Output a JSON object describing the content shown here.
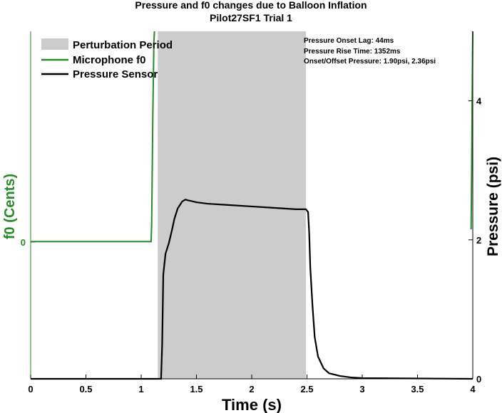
{
  "chart_data": {
    "type": "line",
    "title": "Pressure and f0 changes due to Balloon Inflation",
    "subtitle": "Pilot27SF1 Trial 1",
    "xlabel": "Time (s)",
    "ylabel_left": "f0 (Cents)",
    "ylabel_right": "Pressure (psi)",
    "xlim": [
      0,
      4
    ],
    "ylim_right": [
      0,
      5
    ],
    "x_ticks": [
      "0",
      "0.5",
      "1",
      "1.5",
      "2",
      "2.5",
      "3",
      "3.5",
      "4"
    ],
    "y_left_ticks": [
      "0"
    ],
    "y_right_ticks": [
      "0",
      "2",
      "4"
    ],
    "perturbation_period": [
      1.15,
      2.49
    ],
    "legend": {
      "placement": "top-left",
      "items": [
        "Perturbation Period",
        "Microphone f0",
        "Pressure Sensor"
      ]
    },
    "annotations": [
      "Pressure Onset Lag: 44ms",
      "Pressure Rise Time: 1352ms",
      "Onset/Offset Pressure: 1.90psi, 2.36psi"
    ],
    "colors": {
      "f0": "#2a8a2a",
      "pressure": "#000000",
      "perturbation": "#cccccc"
    },
    "series": [
      {
        "name": "Microphone f0",
        "axis": "left",
        "x": [
          0,
          1.09,
          1.095,
          1.105,
          1.115,
          1.12
        ],
        "y_relative": [
          0.395,
          0.395,
          0.45,
          0.75,
          0.97,
          1.0
        ]
      },
      {
        "name": "Pressure Sensor",
        "axis": "right",
        "x": [
          0,
          0.7,
          1.18,
          1.19,
          1.2,
          1.22,
          1.25,
          1.28,
          1.3,
          1.33,
          1.37,
          1.4,
          1.42,
          1.45,
          1.5,
          1.6,
          1.8,
          2.0,
          2.2,
          2.4,
          2.49,
          2.51,
          2.52,
          2.53,
          2.55,
          2.57,
          2.6,
          2.65,
          2.7,
          2.8,
          2.9,
          3.0,
          4.0
        ],
        "y": [
          0.0,
          0.0,
          0.0,
          0.5,
          1.5,
          1.8,
          1.95,
          2.15,
          2.3,
          2.45,
          2.55,
          2.58,
          2.57,
          2.56,
          2.54,
          2.52,
          2.5,
          2.48,
          2.46,
          2.44,
          2.44,
          2.4,
          2.1,
          1.6,
          1.05,
          0.6,
          0.32,
          0.15,
          0.08,
          0.04,
          0.02,
          0.01,
          0.0
        ]
      }
    ]
  }
}
